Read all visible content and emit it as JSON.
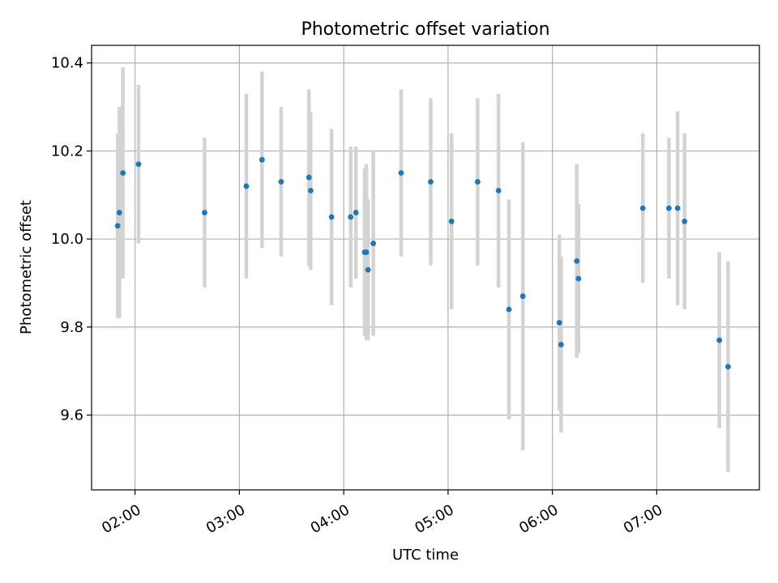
{
  "chart_data": {
    "type": "scatter",
    "title": "Photometric offset variation",
    "xlabel": "UTC time",
    "ylabel": "Photometric offset",
    "xlim": [
      "01:35",
      "07:59"
    ],
    "ylim": [
      9.43,
      10.44
    ],
    "xticks": [
      "02:00",
      "03:00",
      "04:00",
      "05:00",
      "06:00",
      "07:00"
    ],
    "yticks": [
      "9.6",
      "9.8",
      "10.0",
      "10.2",
      "10.4"
    ],
    "grid": true,
    "point_color": "#1f77b4",
    "errorbar_color": "#d3d3d3",
    "points": [
      {
        "x": "01:50",
        "y": 10.03,
        "err": 0.21
      },
      {
        "x": "01:51",
        "y": 10.06,
        "err": 0.24
      },
      {
        "x": "01:53",
        "y": 10.15,
        "err": 0.24
      },
      {
        "x": "02:02",
        "y": 10.17,
        "err": 0.18
      },
      {
        "x": "02:40",
        "y": 10.06,
        "err": 0.17
      },
      {
        "x": "03:04",
        "y": 10.12,
        "err": 0.21
      },
      {
        "x": "03:13",
        "y": 10.18,
        "err": 0.2
      },
      {
        "x": "03:24",
        "y": 10.13,
        "err": 0.17
      },
      {
        "x": "03:40",
        "y": 10.14,
        "err": 0.2
      },
      {
        "x": "03:41",
        "y": 10.11,
        "err": 0.18
      },
      {
        "x": "03:53",
        "y": 10.05,
        "err": 0.2
      },
      {
        "x": "04:04",
        "y": 10.05,
        "err": 0.16
      },
      {
        "x": "04:07",
        "y": 10.06,
        "err": 0.15
      },
      {
        "x": "04:12",
        "y": 9.97,
        "err": 0.19
      },
      {
        "x": "04:13",
        "y": 9.97,
        "err": 0.2
      },
      {
        "x": "04:14",
        "y": 9.93,
        "err": 0.16
      },
      {
        "x": "04:17",
        "y": 9.99,
        "err": 0.21
      },
      {
        "x": "04:33",
        "y": 10.15,
        "err": 0.19
      },
      {
        "x": "04:50",
        "y": 10.13,
        "err": 0.19
      },
      {
        "x": "05:02",
        "y": 10.04,
        "err": 0.2
      },
      {
        "x": "05:17",
        "y": 10.13,
        "err": 0.19
      },
      {
        "x": "05:29",
        "y": 10.11,
        "err": 0.22
      },
      {
        "x": "05:35",
        "y": 9.84,
        "err": 0.25
      },
      {
        "x": "05:43",
        "y": 9.87,
        "err": 0.35
      },
      {
        "x": "06:04",
        "y": 9.81,
        "err": 0.2
      },
      {
        "x": "06:05",
        "y": 9.76,
        "err": 0.2
      },
      {
        "x": "06:14",
        "y": 9.95,
        "err": 0.22
      },
      {
        "x": "06:15",
        "y": 9.91,
        "err": 0.17
      },
      {
        "x": "06:52",
        "y": 10.07,
        "err": 0.17
      },
      {
        "x": "07:07",
        "y": 10.07,
        "err": 0.16
      },
      {
        "x": "07:12",
        "y": 10.07,
        "err": 0.22
      },
      {
        "x": "07:16",
        "y": 10.04,
        "err": 0.2
      },
      {
        "x": "07:36",
        "y": 9.77,
        "err": 0.2
      },
      {
        "x": "07:41",
        "y": 9.71,
        "err": 0.24
      }
    ]
  }
}
